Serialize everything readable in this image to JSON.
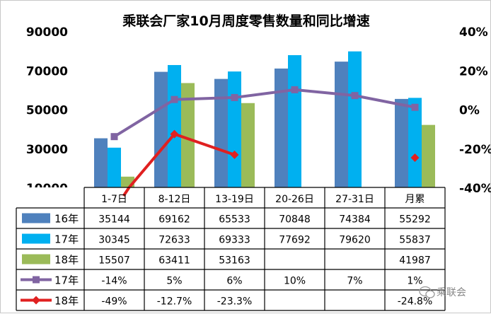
{
  "chart_data": {
    "type": "bar",
    "title": "乘联会厂家10月周度零售数量和同比增速",
    "categories": [
      "1-7日",
      "8-12日",
      "13-19日",
      "20-26日",
      "27-31日",
      "月累"
    ],
    "y_left_ticks": [
      "10000",
      "30000",
      "50000",
      "70000",
      "90000"
    ],
    "y_left_range": [
      10000,
      90000
    ],
    "y_right_ticks": [
      "-40%",
      "-20%",
      "0%",
      "20%",
      "40%"
    ],
    "y_right_range": [
      -40,
      40
    ],
    "legend_position": "left-table",
    "bar_series": [
      {
        "name": "16年",
        "color": "#4F81BD",
        "values": [
          35144,
          69162,
          65533,
          70848,
          74384,
          55292
        ],
        "labels": [
          "35144",
          "69162",
          "65533",
          "70848",
          "74384",
          "55292"
        ]
      },
      {
        "name": "17年",
        "color": "#00B0F0",
        "values": [
          30345,
          72633,
          69333,
          77692,
          79620,
          55837
        ],
        "labels": [
          "30345",
          "72633",
          "69333",
          "77692",
          "79620",
          "55837"
        ]
      },
      {
        "name": "18年",
        "color": "#9BBB59",
        "values": [
          15507,
          63411,
          53163,
          null,
          null,
          41987
        ],
        "labels": [
          "15507",
          "63411",
          "53163",
          "",
          "",
          "41987"
        ]
      }
    ],
    "line_series": [
      {
        "name": "17年",
        "color": "#8064A2",
        "marker": "square",
        "values": [
          -14,
          5,
          6,
          10,
          7,
          1
        ],
        "labels": [
          "-14%",
          "5%",
          "6%",
          "10%",
          "7%",
          "1%"
        ]
      },
      {
        "name": "18年",
        "color": "#E02020",
        "marker": "diamond",
        "values": [
          -49,
          -12.7,
          -23.3,
          null,
          null,
          -24.8
        ],
        "labels": [
          "-49%",
          "-12.7%",
          "-23.3%",
          "",
          "",
          "-24.8%"
        ]
      }
    ]
  },
  "watermark": {
    "text": "乘联会",
    "icon": "wechat-icon"
  }
}
